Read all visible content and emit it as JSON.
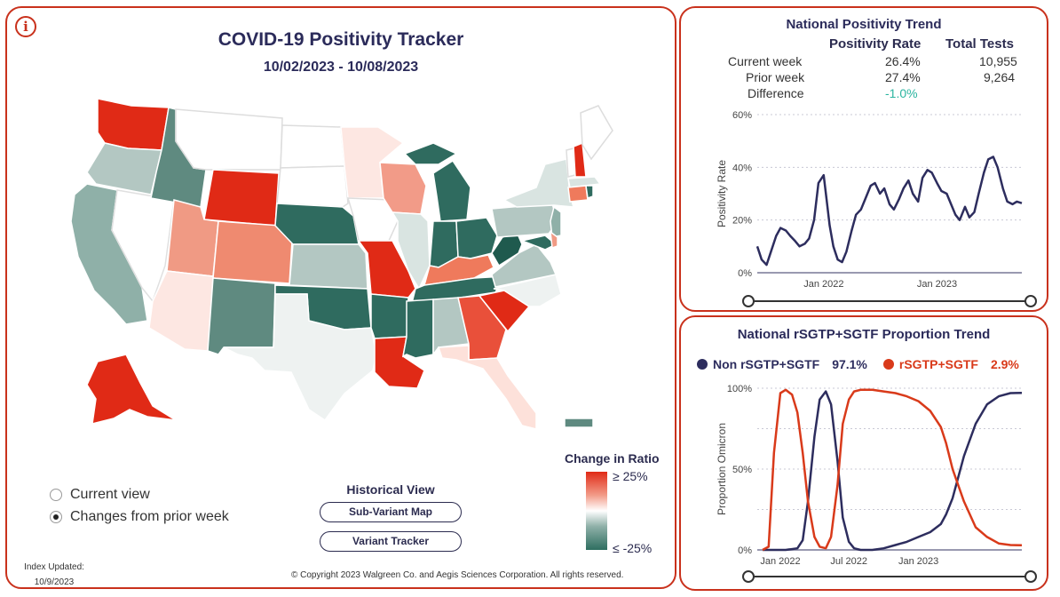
{
  "main": {
    "title": "COVID-19 Positivity Tracker",
    "date_range": "10/02/2023 - 10/08/2023",
    "info_icon": "i",
    "view_options": [
      {
        "label": "Current view",
        "selected": false
      },
      {
        "label": "Changes from prior week",
        "selected": true
      }
    ],
    "historical": {
      "title": "Historical View",
      "buttons": [
        "Sub-Variant Map",
        "Variant Tracker"
      ]
    },
    "legend": {
      "title": "Change in Ratio",
      "high": "≥ 25%",
      "low": "≤ -25%"
    },
    "index_updated_label": "Index Updated:",
    "index_updated_date": "10/9/2023",
    "copyright": "© Copyright 2023 Walgreen Co. and Aegis Sciences Corporation. All rights reserved."
  },
  "trend": {
    "title": "National Positivity Trend",
    "col_rate": "Positivity Rate",
    "col_tests": "Total Tests",
    "rows": [
      {
        "label": "Current week",
        "rate": "26.4%",
        "tests": "10,955"
      },
      {
        "label": "Prior week",
        "rate": "27.4%",
        "tests": "9,264"
      },
      {
        "label": "Difference",
        "rate": "-1.0%",
        "tests": ""
      }
    ],
    "difference_color": "#2bb5a0"
  },
  "sgtf": {
    "title": "National rSGTP+SGTF Proportion Trend",
    "legend": [
      {
        "name": "Non rSGTP+SGTF",
        "value": "97.1%",
        "color": "#2d2d5e"
      },
      {
        "name": "rSGTP+SGTF",
        "value": "2.9%",
        "color": "#d93a1a"
      }
    ]
  },
  "chart_data": [
    {
      "type": "line",
      "title": "National Positivity Trend",
      "ylabel": "Positivity Rate",
      "xlabel": "",
      "x_ticks": [
        "Jan 2022",
        "Jan 2023"
      ],
      "y_ticks": [
        "0%",
        "20%",
        "40%",
        "60%"
      ],
      "ylim": [
        0,
        60
      ],
      "xlim": [
        "2021-06",
        "2023-10"
      ],
      "grid": true,
      "series": [
        {
          "color": "#2d2d5e",
          "x": [
            "2021-06-01",
            "2021-06-15",
            "2021-07-01",
            "2021-07-15",
            "2021-08-01",
            "2021-08-15",
            "2021-09-01",
            "2021-09-15",
            "2021-10-01",
            "2021-10-15",
            "2021-11-01",
            "2021-11-15",
            "2021-12-01",
            "2021-12-15",
            "2022-01-01",
            "2022-01-10",
            "2022-01-20",
            "2022-02-01",
            "2022-02-15",
            "2022-03-01",
            "2022-03-15",
            "2022-04-01",
            "2022-04-15",
            "2022-05-01",
            "2022-05-15",
            "2022-06-01",
            "2022-06-15",
            "2022-07-01",
            "2022-07-15",
            "2022-08-01",
            "2022-08-15",
            "2022-09-01",
            "2022-09-15",
            "2022-10-01",
            "2022-10-15",
            "2022-11-01",
            "2022-11-15",
            "2022-12-01",
            "2022-12-15",
            "2023-01-01",
            "2023-01-15",
            "2023-02-01",
            "2023-02-15",
            "2023-03-01",
            "2023-03-15",
            "2023-04-01",
            "2023-04-15",
            "2023-05-01",
            "2023-05-15",
            "2023-06-01",
            "2023-06-15",
            "2023-07-01",
            "2023-07-15",
            "2023-08-01",
            "2023-08-15",
            "2023-09-01",
            "2023-09-15",
            "2023-10-01"
          ],
          "y": [
            10,
            5,
            3,
            8,
            14,
            17,
            16,
            14,
            12,
            10,
            11,
            13,
            20,
            34,
            37,
            28,
            18,
            10,
            5,
            4,
            8,
            16,
            22,
            24,
            28,
            33,
            34,
            30,
            32,
            26,
            24,
            28,
            32,
            35,
            30,
            27,
            36,
            39,
            38,
            34,
            31,
            30,
            26,
            22,
            20,
            25,
            21,
            23,
            30,
            38,
            43,
            44,
            40,
            32,
            27,
            26,
            27,
            26.4
          ]
        }
      ]
    },
    {
      "type": "line",
      "title": "National rSGTP+SGTF Proportion Trend",
      "ylabel": "Proportion Omicron",
      "xlabel": "",
      "x_ticks": [
        "Jan 2022",
        "Jul 2022",
        "Jan 2023"
      ],
      "y_ticks": [
        "0%",
        "50%",
        "100%"
      ],
      "ylim": [
        0,
        100
      ],
      "xlim": [
        "2021-11",
        "2023-10"
      ],
      "grid": true,
      "series": [
        {
          "name": "Non rSGTP+SGTF",
          "color": "#2d2d5e",
          "x": [
            "2021-11-15",
            "2021-12-15",
            "2022-01-15",
            "2022-02-15",
            "2022-03-01",
            "2022-03-15",
            "2022-04-01",
            "2022-04-15",
            "2022-05-01",
            "2022-05-15",
            "2022-06-01",
            "2022-06-15",
            "2022-07-01",
            "2022-07-15",
            "2022-08-01",
            "2022-09-01",
            "2022-10-01",
            "2022-11-01",
            "2022-12-01",
            "2023-01-01",
            "2023-02-01",
            "2023-03-01",
            "2023-03-15",
            "2023-04-01",
            "2023-05-01",
            "2023-06-01",
            "2023-07-01",
            "2023-08-01",
            "2023-09-01",
            "2023-10-01"
          ],
          "y": [
            0,
            0,
            0,
            1,
            6,
            30,
            70,
            93,
            98,
            90,
            55,
            20,
            5,
            1,
            0,
            0,
            1,
            3,
            5,
            8,
            11,
            16,
            22,
            32,
            58,
            78,
            90,
            95,
            97,
            97.1
          ]
        },
        {
          "name": "rSGTP+SGTF",
          "color": "#d93a1a",
          "x": [
            "2021-11-15",
            "2021-12-01",
            "2021-12-15",
            "2022-01-01",
            "2022-01-15",
            "2022-02-01",
            "2022-02-15",
            "2022-03-01",
            "2022-03-15",
            "2022-04-01",
            "2022-04-15",
            "2022-05-01",
            "2022-05-15",
            "2022-06-01",
            "2022-06-15",
            "2022-07-01",
            "2022-07-15",
            "2022-08-01",
            "2022-09-01",
            "2022-10-01",
            "2022-11-01",
            "2022-12-01",
            "2023-01-01",
            "2023-02-01",
            "2023-03-01",
            "2023-03-15",
            "2023-04-01",
            "2023-05-01",
            "2023-06-01",
            "2023-07-01",
            "2023-08-01",
            "2023-09-01",
            "2023-10-01"
          ],
          "y": [
            0,
            2,
            60,
            97,
            99,
            96,
            85,
            60,
            30,
            8,
            2,
            1,
            8,
            40,
            78,
            93,
            98,
            99,
            99,
            98,
            97,
            95,
            92,
            86,
            76,
            66,
            50,
            30,
            14,
            8,
            4,
            3,
            2.9
          ]
        }
      ]
    }
  ]
}
